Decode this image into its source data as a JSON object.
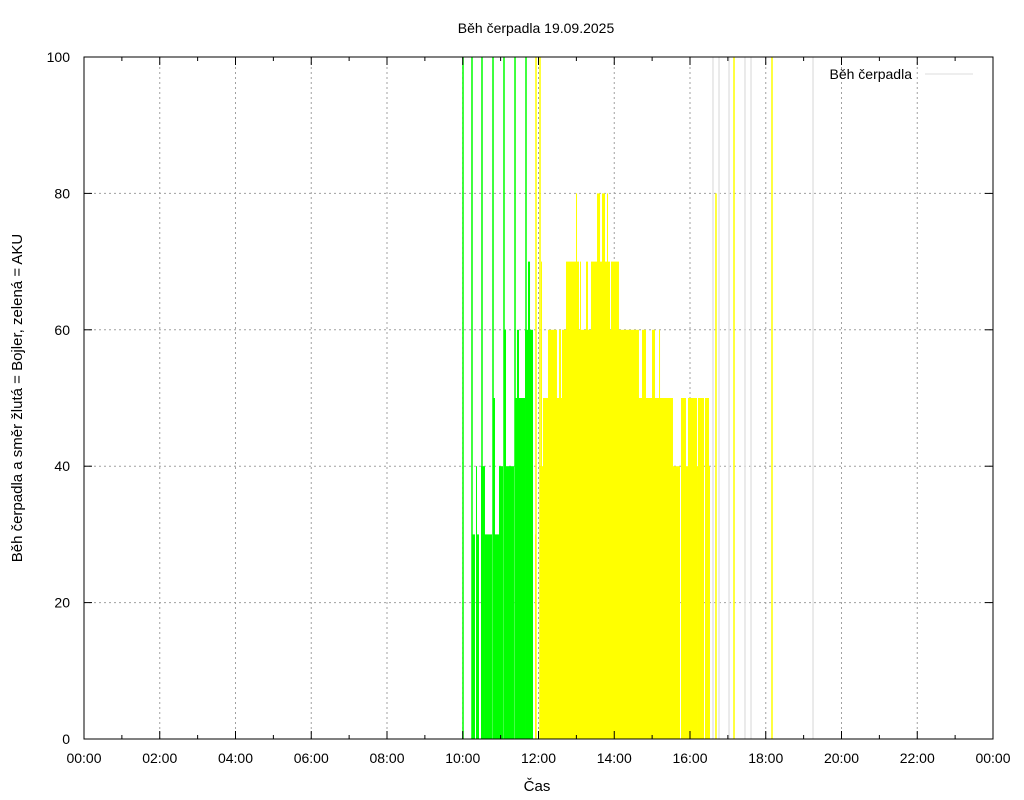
{
  "chart_data": {
    "type": "bar",
    "title": "Běh čerpadla 19.09.2025",
    "xlabel": "Čas",
    "ylabel": "Běh čerpadla a směr žlutá = Bojler, zelená = AKU",
    "xlim_hours": [
      0,
      24
    ],
    "ylim": [
      0,
      100
    ],
    "grid": true,
    "x_tick_labels": [
      "00:00",
      "02:00",
      "04:00",
      "06:00",
      "08:00",
      "10:00",
      "12:00",
      "14:00",
      "16:00",
      "18:00",
      "20:00",
      "22:00",
      "00:00"
    ],
    "y_tick_labels": [
      "0",
      "20",
      "40",
      "60",
      "80",
      "100"
    ],
    "y_ticks": [
      0,
      20,
      40,
      60,
      80,
      100
    ],
    "legend": {
      "label": "Běh čerpadla",
      "placement": "top-right",
      "color": "#dddddd"
    },
    "colors": {
      "aku": "#00ff00",
      "bojler": "#ffff00",
      "pale": "#e4e4e4"
    },
    "series": [
      {
        "name": "AKU",
        "color_key": "aku",
        "bars": [
          [
            10.244,
            10.323,
            30
          ],
          [
            10.35,
            10.429,
            30
          ],
          [
            10.35,
            10.376,
            40
          ],
          [
            10.482,
            10.587,
            40
          ],
          [
            10.587,
            10.772,
            30
          ],
          [
            10.799,
            10.957,
            30
          ],
          [
            10.799,
            10.851,
            50
          ],
          [
            10.957,
            11.063,
            40
          ],
          [
            11.089,
            11.142,
            60
          ],
          [
            11.142,
            11.353,
            40
          ],
          [
            11.38,
            11.644,
            50
          ],
          [
            11.432,
            11.485,
            60
          ],
          [
            11.644,
            11.855,
            60
          ],
          [
            11.723,
            11.776,
            70
          ]
        ],
        "lines": [
          [
            10.007,
            100
          ],
          [
            10.244,
            100
          ],
          [
            10.508,
            100
          ],
          [
            10.799,
            100
          ],
          [
            11.089,
            100
          ],
          [
            11.38,
            100
          ],
          [
            11.67,
            100
          ]
        ]
      },
      {
        "name": "Bojler",
        "color_key": "bojler",
        "bars": [
          [
            11.908,
            11.934,
            30
          ],
          [
            12.04,
            12.172,
            40
          ],
          [
            12.066,
            12.092,
            70
          ],
          [
            12.119,
            12.198,
            50
          ],
          [
            12.198,
            15.551,
            50
          ],
          [
            12.251,
            12.488,
            60
          ],
          [
            12.541,
            12.594,
            60
          ],
          [
            12.62,
            14.653,
            60
          ],
          [
            12.726,
            13.069,
            70
          ],
          [
            12.99,
            13.017,
            80
          ],
          [
            13.096,
            13.122,
            70
          ],
          [
            13.254,
            13.307,
            70
          ],
          [
            13.386,
            13.888,
            70
          ],
          [
            13.545,
            13.624,
            80
          ],
          [
            13.677,
            13.756,
            80
          ],
          [
            13.809,
            13.835,
            80
          ],
          [
            13.914,
            14.125,
            70
          ],
          [
            14.733,
            14.838,
            60
          ],
          [
            14.997,
            15.076,
            60
          ],
          [
            15.182,
            15.208,
            60
          ],
          [
            15.551,
            15.736,
            40
          ],
          [
            15.762,
            15.894,
            50
          ],
          [
            15.894,
            15.947,
            40
          ],
          [
            15.947,
            16.185,
            50
          ],
          [
            16.185,
            16.211,
            40
          ],
          [
            16.211,
            16.37,
            50
          ],
          [
            16.396,
            16.502,
            50
          ],
          [
            16.502,
            16.528,
            40
          ]
        ],
        "lines": [
          [
            11.934,
            100
          ],
          [
            12.04,
            100
          ],
          [
            16.686,
            80
          ],
          [
            17.162,
            100
          ],
          [
            18.165,
            100
          ]
        ]
      },
      {
        "name": "Běh čerpadla",
        "color_key": "pale",
        "bars": [],
        "lines": [
          [
            16.607,
            100
          ],
          [
            16.766,
            100
          ],
          [
            17.03,
            100
          ],
          [
            17.452,
            100
          ],
          [
            17.611,
            100
          ],
          [
            19.248,
            100
          ]
        ]
      }
    ]
  }
}
